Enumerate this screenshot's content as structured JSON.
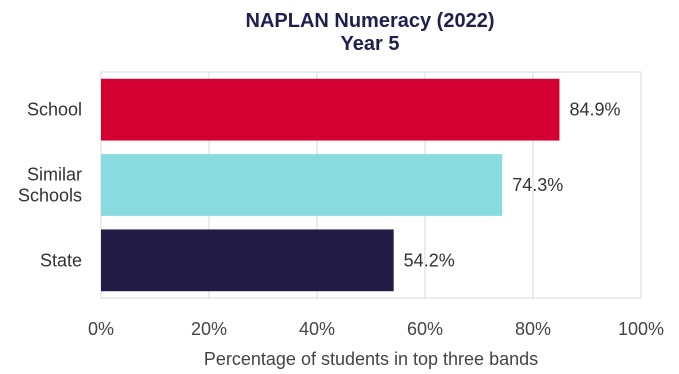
{
  "chart_data": {
    "type": "bar",
    "orientation": "horizontal",
    "title": [
      "NAPLAN Numeracy (2022)",
      "Year 5"
    ],
    "categories": [
      [
        "School"
      ],
      [
        "Similar",
        "Schools"
      ],
      [
        "State"
      ]
    ],
    "values": [
      84.9,
      74.3,
      54.2
    ],
    "value_labels": [
      "84.9%",
      "74.3%",
      "54.2%"
    ],
    "colors": [
      "#d50032",
      "#8adbe0",
      "#221c46"
    ],
    "xlabel": "Percentage of students in top three bands",
    "ylabel": "",
    "xlim": [
      0,
      100
    ],
    "xticks": [
      0,
      20,
      40,
      60,
      80,
      100
    ],
    "xtick_labels": [
      "0%",
      "20%",
      "40%",
      "60%",
      "80%",
      "100%"
    ],
    "grid": "vertical",
    "legend": "none"
  }
}
